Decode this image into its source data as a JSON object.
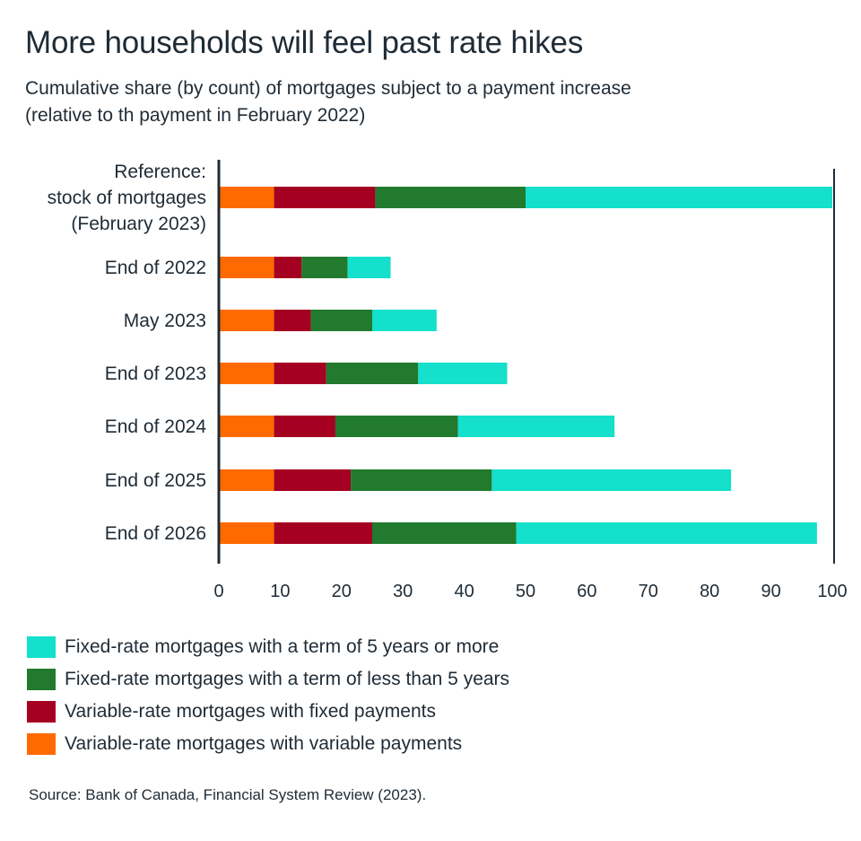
{
  "title": "More households will feel past rate hikes",
  "subtitle_line1": "Cumulative share (by count) of mortgages subject to a payment increase",
  "subtitle_line2": "(relative to th payment in February 2022)",
  "source": "Source: Bank of Canada, Financial System Review (2023).",
  "colors": {
    "fixed_5plus": "#14e0cb",
    "fixed_lt5": "#217a2d",
    "variable_fixed": "#a50021",
    "variable_variable": "#ff6a00",
    "axis": "#1f2b35"
  },
  "chart_data": {
    "type": "bar",
    "orientation": "horizontal",
    "stacked": true,
    "title": "More households will feel past rate hikes",
    "categories": [
      [
        "Reference:",
        "stock of mortgages",
        "(February 2023)"
      ],
      [
        "End of 2022"
      ],
      [
        "May 2023"
      ],
      [
        "End of 2023"
      ],
      [
        "End of 2024"
      ],
      [
        "End of 2025"
      ],
      [
        "End of 2026"
      ]
    ],
    "xlim": [
      0,
      100
    ],
    "xticks": [
      0,
      10,
      20,
      30,
      40,
      50,
      60,
      70,
      80,
      90,
      100
    ],
    "grid": false,
    "legend_position": "bottom",
    "series": [
      {
        "name": "Variable-rate mortgages with variable payments",
        "color_key": "variable_variable",
        "values": [
          9,
          9,
          9,
          9,
          9,
          9,
          9
        ]
      },
      {
        "name": "Variable-rate mortgages with fixed payments",
        "color_key": "variable_fixed",
        "values": [
          16.5,
          4.5,
          6,
          8.5,
          10,
          12.5,
          16
        ]
      },
      {
        "name": "Fixed-rate mortgages with a term of less than 5 years",
        "color_key": "fixed_lt5",
        "values": [
          24.5,
          7.5,
          10,
          15,
          20,
          23,
          23.5
        ]
      },
      {
        "name": "Fixed-rate mortgages with a term of 5 years or more",
        "color_key": "fixed_5plus",
        "values": [
          50,
          7,
          10.5,
          14.5,
          25.5,
          39,
          49
        ]
      }
    ]
  },
  "legend": [
    {
      "label": "Fixed-rate mortgages with a term of 5 years or more",
      "color_key": "fixed_5plus"
    },
    {
      "label": "Fixed-rate mortgages with a term of less than 5 years",
      "color_key": "fixed_lt5"
    },
    {
      "label": "Variable-rate mortgages with fixed payments",
      "color_key": "variable_fixed"
    },
    {
      "label": "Variable-rate mortgages with variable payments",
      "color_key": "variable_variable"
    }
  ]
}
